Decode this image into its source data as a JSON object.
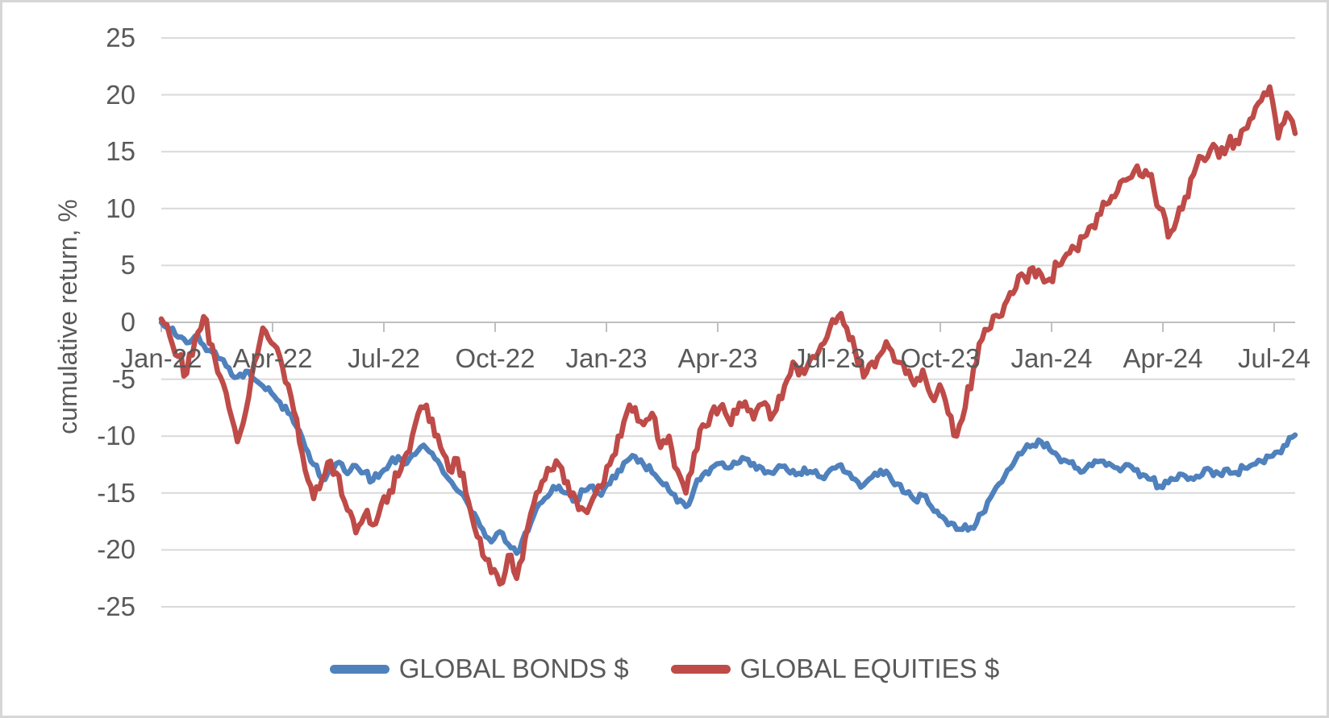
{
  "chart_data": {
    "type": "line",
    "title": "",
    "xlabel": "",
    "ylabel": "cumulative return, %",
    "grid": "horizontal",
    "legend_position": "bottom",
    "ylim": [
      -25,
      25
    ],
    "y_ticks": [
      25,
      20,
      15,
      10,
      5,
      0,
      -5,
      -10,
      -15,
      -20,
      -25
    ],
    "x_tick_labels": [
      "Jan-22",
      "Apr-22",
      "Jul-22",
      "Oct-22",
      "Jan-23",
      "Apr-23",
      "Jul-23",
      "Oct-23",
      "Jan-24",
      "Apr-24",
      "Jul-24"
    ],
    "x_range": [
      "Jan-2022",
      "mid-Jul-2024"
    ],
    "sampling": "weekly, values in percent cumulative return",
    "series": [
      {
        "name": "GLOBAL BONDS $",
        "color": "#4F81BD",
        "values": [
          0.0,
          -0.6,
          -1.3,
          -1.8,
          -1.2,
          -2.0,
          -2.6,
          -3.2,
          -4.0,
          -4.8,
          -4.3,
          -5.0,
          -5.6,
          -6.2,
          -7.0,
          -8.0,
          -9.2,
          -11.0,
          -12.5,
          -13.8,
          -12.8,
          -12.3,
          -13.3,
          -12.6,
          -13.2,
          -13.9,
          -13.2,
          -12.4,
          -11.8,
          -12.4,
          -11.6,
          -10.8,
          -11.5,
          -12.6,
          -13.8,
          -14.8,
          -15.6,
          -16.8,
          -18.2,
          -19.3,
          -18.4,
          -19.5,
          -20.3,
          -18.5,
          -17.0,
          -15.8,
          -15.0,
          -14.4,
          -15.0,
          -15.6,
          -14.8,
          -14.4,
          -15.2,
          -14.2,
          -13.0,
          -12.2,
          -11.8,
          -12.5,
          -13.2,
          -14.0,
          -14.8,
          -15.8,
          -16.2,
          -14.6,
          -13.4,
          -12.8,
          -12.4,
          -12.8,
          -12.4,
          -12.0,
          -12.4,
          -12.8,
          -13.2,
          -12.6,
          -13.0,
          -13.4,
          -12.8,
          -13.2,
          -13.6,
          -13.0,
          -12.6,
          -13.2,
          -13.8,
          -14.3,
          -13.6,
          -13.0,
          -13.4,
          -14.2,
          -15.0,
          -15.6,
          -15.2,
          -16.2,
          -17.0,
          -17.8,
          -18.2,
          -17.8,
          -18.1,
          -16.8,
          -15.4,
          -14.2,
          -13.0,
          -12.0,
          -11.2,
          -10.8,
          -10.5,
          -11.2,
          -11.8,
          -12.2,
          -12.8,
          -13.1,
          -12.6,
          -12.2,
          -12.4,
          -12.8,
          -12.5,
          -13.0,
          -13.4,
          -13.8,
          -14.4,
          -14.1,
          -13.8,
          -13.5,
          -13.8,
          -13.4,
          -13.0,
          -13.3,
          -12.9,
          -13.2,
          -12.8,
          -12.5,
          -12.2,
          -11.8,
          -11.4,
          -10.8,
          -9.9
        ]
      },
      {
        "name": "GLOBAL EQUITIES $",
        "color": "#BE4B48",
        "values": [
          0.3,
          -1.2,
          -3.0,
          -4.5,
          -1.5,
          0.5,
          -2.0,
          -4.8,
          -7.5,
          -10.5,
          -7.8,
          -3.5,
          -0.5,
          -1.8,
          -3.0,
          -5.5,
          -8.5,
          -13.0,
          -15.5,
          -13.8,
          -12.2,
          -13.5,
          -16.5,
          -18.5,
          -17.0,
          -17.8,
          -16.0,
          -14.8,
          -13.5,
          -11.5,
          -9.0,
          -7.5,
          -8.5,
          -11.0,
          -13.0,
          -12.0,
          -15.0,
          -18.0,
          -20.5,
          -22.0,
          -23.0,
          -20.5,
          -22.5,
          -19.0,
          -16.0,
          -14.0,
          -13.0,
          -12.5,
          -14.0,
          -15.5,
          -16.5,
          -15.5,
          -14.5,
          -12.5,
          -10.0,
          -8.0,
          -7.5,
          -9.0,
          -8.0,
          -11.0,
          -10.0,
          -13.0,
          -15.0,
          -11.5,
          -9.0,
          -8.0,
          -7.5,
          -8.5,
          -8.0,
          -7.0,
          -8.5,
          -7.2,
          -8.5,
          -6.5,
          -5.0,
          -3.8,
          -4.5,
          -3.0,
          -2.0,
          -0.5,
          0.5,
          -0.5,
          -2.5,
          -4.8,
          -3.5,
          -2.8,
          -2.2,
          -3.5,
          -4.5,
          -5.5,
          -4.2,
          -6.5,
          -5.5,
          -8.0,
          -10.0,
          -7.5,
          -4.0,
          -1.5,
          -0.5,
          0.5,
          2.0,
          3.0,
          4.0,
          4.8,
          4.2,
          3.8,
          5.0,
          6.0,
          6.5,
          7.5,
          8.5,
          9.5,
          10.5,
          11.5,
          12.5,
          13.3,
          12.8,
          13.0,
          10.0,
          7.5,
          9.0,
          11.0,
          13.0,
          14.5,
          15.2,
          14.5,
          15.5,
          16.0,
          17.0,
          18.0,
          19.5,
          20.7,
          16.2,
          18.4,
          16.6
        ]
      }
    ],
    "colors": {
      "gridline": "#d9d9d9",
      "axis_line": "#bfbfbf",
      "axis_text": "#595959",
      "bonds_line": "#4F81BD",
      "equities_line": "#BE4B48"
    }
  }
}
